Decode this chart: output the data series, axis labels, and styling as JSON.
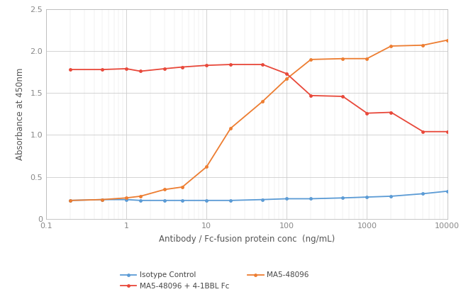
{
  "xlabel": "Antibody / Fc-fusion protein conc  (ng/mL)",
  "ylabel": "Absorbance at 450nm",
  "ylim": [
    0,
    2.5
  ],
  "xlim": [
    0.1,
    10000
  ],
  "background_color": "#ffffff",
  "grid_color": "#cccccc",
  "isotype_x": [
    0.2,
    0.5,
    1.0,
    1.5,
    3.0,
    5.0,
    10.0,
    20.0,
    50.0,
    100.0,
    200.0,
    500.0,
    1000.0,
    2000.0,
    5000.0,
    10000.0
  ],
  "isotype_y": [
    0.22,
    0.23,
    0.23,
    0.22,
    0.22,
    0.22,
    0.22,
    0.22,
    0.23,
    0.24,
    0.24,
    0.25,
    0.26,
    0.27,
    0.3,
    0.33
  ],
  "isotype_color": "#5b9bd5",
  "isotype_label": "Isotype Control",
  "ma5_x": [
    0.2,
    0.5,
    1.0,
    1.5,
    3.0,
    5.0,
    10.0,
    20.0,
    50.0,
    100.0,
    200.0,
    500.0,
    1000.0,
    2000.0,
    5000.0,
    10000.0
  ],
  "ma5_y": [
    0.22,
    0.23,
    0.25,
    0.27,
    0.35,
    0.38,
    0.62,
    1.08,
    1.4,
    1.67,
    1.9,
    1.91,
    1.91,
    2.06,
    2.07,
    2.13
  ],
  "ma5_color": "#ed7d31",
  "ma5_label": "MA5-48096",
  "comp_x": [
    0.2,
    0.5,
    1.0,
    1.5,
    3.0,
    5.0,
    10.0,
    20.0,
    50.0,
    100.0,
    200.0,
    500.0,
    1000.0,
    2000.0,
    5000.0,
    10000.0
  ],
  "comp_y": [
    1.78,
    1.78,
    1.79,
    1.76,
    1.79,
    1.81,
    1.83,
    1.84,
    1.84,
    1.73,
    1.47,
    1.46,
    1.26,
    1.27,
    1.04,
    1.04
  ],
  "comp_color": "#e8483a",
  "comp_label": "MA5-48096 + 4-1BBL Fc",
  "yticks": [
    0,
    0.5,
    1.0,
    1.5,
    2.0,
    2.5
  ],
  "xticks": [
    0.1,
    1,
    10,
    100,
    1000,
    10000
  ],
  "xtick_labels": [
    "0.1",
    "1",
    "10",
    "100",
    "1000",
    "10000"
  ]
}
